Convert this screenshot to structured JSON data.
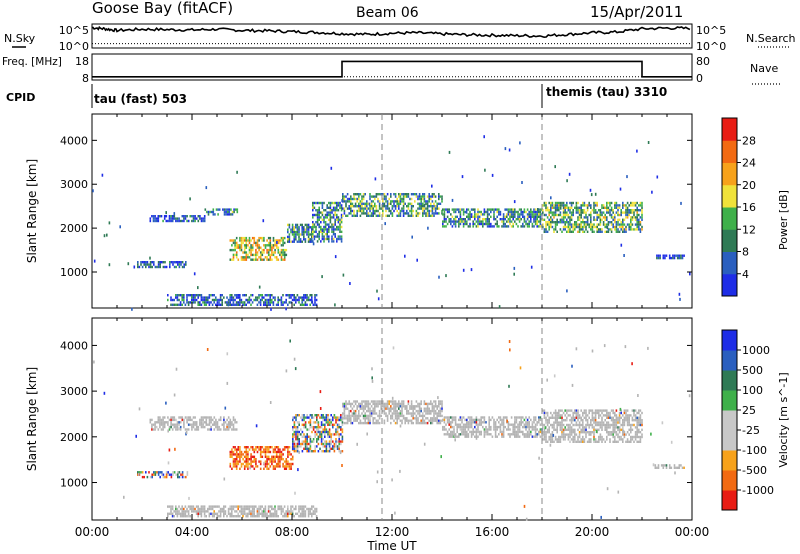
{
  "header": {
    "radar": "Goose Bay (fitACF)",
    "beam": "Beam 06",
    "date": "15/Apr/2011"
  },
  "colors": {
    "power_scale": [
      "#1e2de6",
      "#2a5fbf",
      "#2f7a55",
      "#3fb04a",
      "#f0e23a",
      "#f7a21b",
      "#f26a12",
      "#e81c14"
    ],
    "velocity_scale": [
      "#e81c14",
      "#f26a12",
      "#f7a21b",
      "#c8c8c8",
      "#c8c8c8",
      "#3fb04a",
      "#2f7a55",
      "#2a5fbf",
      "#1e2de6"
    ],
    "ground_scatter": "#b4b4b4",
    "dashed_line": "#888888"
  },
  "chart_data": [
    {
      "type": "line",
      "panel": "noise",
      "left_label": "N.Sky",
      "right_label": "N.Search",
      "left_ticks": [
        "10^5",
        "10^0"
      ],
      "right_ticks": [
        "10^5",
        "10^0"
      ],
      "x_range_hours": [
        0,
        24
      ],
      "series": [
        {
          "name": "N.Sky",
          "style": "solid",
          "x": [
            0,
            0.5,
            1,
            2,
            3,
            4,
            5,
            6,
            7,
            8,
            9,
            10,
            11,
            12,
            13,
            14,
            15,
            16,
            17,
            18,
            19,
            20,
            21,
            22,
            23,
            24
          ],
          "y": [
            4.6,
            4.3,
            3.9,
            4.2,
            4.1,
            4.0,
            4.2,
            3.9,
            3.8,
            3.6,
            3.4,
            3.1,
            2.9,
            3.2,
            3.3,
            3.0,
            2.8,
            2.7,
            2.6,
            2.5,
            2.9,
            3.3,
            3.5,
            4.3,
            4.5,
            4.4
          ]
        },
        {
          "name": "N.Search",
          "style": "dotted",
          "x": [
            0,
            24
          ],
          "y": [
            0.6,
            0.6
          ]
        }
      ]
    },
    {
      "type": "line",
      "panel": "frequency",
      "left_label": "Freq. [MHz]",
      "right_label": "Nave",
      "left_ticks": [
        "18",
        "8"
      ],
      "right_ticks": [
        "80",
        "0"
      ],
      "series": [
        {
          "name": "Freq. [MHz]",
          "style": "solid",
          "x": [
            0,
            10,
            10,
            18,
            18,
            22,
            22,
            24
          ],
          "y": [
            9,
            9,
            16,
            16,
            16,
            16,
            9,
            9
          ]
        },
        {
          "name": "Nave",
          "style": "dotted",
          "x": [
            0,
            24
          ],
          "y": [
            8,
            8
          ]
        }
      ]
    },
    {
      "type": "table",
      "panel": "cpid",
      "label": "CPID",
      "segments": [
        {
          "start_hour": 0,
          "text": "tau (fast) 503"
        },
        {
          "start_hour": 18,
          "text": "themis (tau) 3310"
        }
      ]
    },
    {
      "type": "heatmap",
      "panel": "power",
      "ylabel": "Slant Range [km]",
      "y_ticks": [
        "1000",
        "2000",
        "3000",
        "4000"
      ],
      "ylim": [
        180,
        4600
      ],
      "colorbar_label": "Power [dB]",
      "colorbar_ticks": [
        "4",
        "8",
        "12",
        "16",
        "20",
        "24",
        "28"
      ],
      "dashed_lines_hour": [
        11.6,
        18
      ],
      "regions": [
        {
          "t0": 2.3,
          "t1": 4.5,
          "r0": 2150,
          "r1": 2300,
          "level": 0.2
        },
        {
          "t0": 4.5,
          "t1": 5.8,
          "r0": 2300,
          "r1": 2450,
          "level": 0.3
        },
        {
          "t0": 5.5,
          "t1": 7.8,
          "r0": 1300,
          "r1": 1800,
          "level": 0.55
        },
        {
          "t0": 7.8,
          "t1": 8.8,
          "r0": 1700,
          "r1": 2100,
          "level": 0.3
        },
        {
          "t0": 8.8,
          "t1": 10.0,
          "r0": 1700,
          "r1": 2600,
          "level": 0.3
        },
        {
          "t0": 10.0,
          "t1": 14.0,
          "r0": 2300,
          "r1": 2800,
          "level": 0.35
        },
        {
          "t0": 14.0,
          "t1": 18.0,
          "r0": 2050,
          "r1": 2450,
          "level": 0.3
        },
        {
          "t0": 18.0,
          "t1": 22.0,
          "r0": 1900,
          "r1": 2600,
          "level": 0.4
        },
        {
          "t0": 22.5,
          "t1": 23.7,
          "r0": 1300,
          "r1": 1400,
          "level": 0.1
        },
        {
          "t0": 1.8,
          "t1": 3.8,
          "r0": 1100,
          "r1": 1250,
          "level": 0.2
        },
        {
          "t0": 3.0,
          "t1": 9.0,
          "r0": 250,
          "r1": 500,
          "level": 0.2
        }
      ]
    },
    {
      "type": "heatmap",
      "panel": "velocity",
      "ylabel": "Slant Range [km]",
      "y_ticks": [
        "1000",
        "2000",
        "3000",
        "4000"
      ],
      "ylim": [
        180,
        4600
      ],
      "xlabel": "Time UT",
      "x_ticks": [
        "00:00",
        "04:00",
        "08:00",
        "12:00",
        "16:00",
        "20:00",
        "00:00"
      ],
      "colorbar_label": "Velocity [m s^-1]",
      "colorbar_ticks": [
        "1000",
        "500",
        "100",
        "25",
        "-25",
        "-100",
        "-500",
        "-1000"
      ],
      "dashed_lines_hour": [
        11.6,
        18
      ],
      "regions": [
        {
          "t0": 2.3,
          "t1": 5.8,
          "r0": 2150,
          "r1": 2450,
          "kind": "ground"
        },
        {
          "t0": 5.5,
          "t1": 8.0,
          "r0": 1300,
          "r1": 1800,
          "kind": "negative"
        },
        {
          "t0": 8.0,
          "t1": 10.0,
          "r0": 1700,
          "r1": 2500,
          "kind": "mixed"
        },
        {
          "t0": 10.0,
          "t1": 14.0,
          "r0": 2300,
          "r1": 2800,
          "kind": "ground"
        },
        {
          "t0": 14.0,
          "t1": 18.0,
          "r0": 2000,
          "r1": 2450,
          "kind": "ground"
        },
        {
          "t0": 18.0,
          "t1": 22.0,
          "r0": 1900,
          "r1": 2600,
          "kind": "ground"
        },
        {
          "t0": 22.5,
          "t1": 23.7,
          "r0": 1300,
          "r1": 1400,
          "kind": "ground"
        },
        {
          "t0": 1.8,
          "t1": 3.8,
          "r0": 1100,
          "r1": 1250,
          "kind": "mixed"
        },
        {
          "t0": 3.0,
          "t1": 9.0,
          "r0": 250,
          "r1": 500,
          "kind": "ground"
        }
      ]
    }
  ]
}
